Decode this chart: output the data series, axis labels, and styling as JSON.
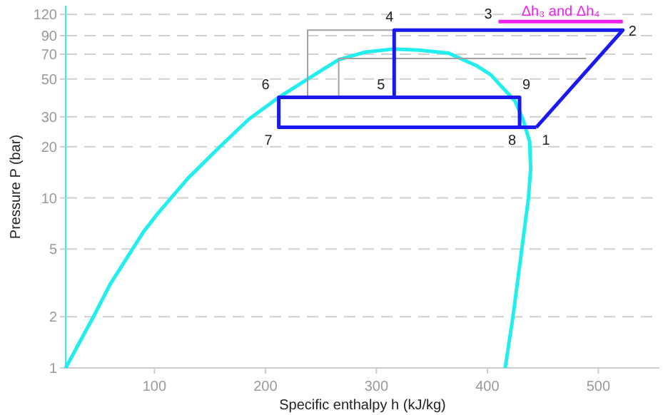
{
  "chart_data": {
    "type": "line",
    "xlabel": "Specific enthalpy h (kJ/kg)",
    "ylabel": "Pressure P (bar)",
    "log": "y",
    "grid": "y",
    "line_style": "solid",
    "xlim": [
      20,
      555
    ],
    "xticks": [
      100,
      200,
      300,
      400,
      500
    ],
    "ylim": [
      1,
      135
    ],
    "yticks": [
      1,
      2,
      5,
      10,
      20,
      30,
      50,
      70,
      90,
      120
    ],
    "series": [
      {
        "color": "#22eeee",
        "x": [
          20,
          45,
          60,
          90,
          103,
          130,
          159,
          185,
          212,
          238,
          266,
          290,
          315,
          338,
          365,
          390,
          403,
          425,
          432,
          438,
          439,
          437,
          431,
          423,
          416
        ],
        "values": [
          1,
          2,
          3.1,
          6.3,
          8.1,
          13,
          20,
          29,
          39,
          50,
          65,
          72,
          75,
          74,
          71,
          60,
          53,
          37,
          29,
          21.5,
          15,
          10,
          5,
          2,
          1
        ]
      },
      {
        "color": "#a0a0a0",
        "x": [
          316,
          238,
          238
        ],
        "values": [
          97,
          97,
          39
        ]
      },
      {
        "color": "#a0a0a0",
        "x": [
          489,
          266,
          266
        ],
        "values": [
          66,
          66,
          39
        ]
      },
      {
        "color": "#1a1aee",
        "x": [
          444,
          522,
          316,
          316
        ],
        "values": [
          26,
          97,
          97,
          39
        ]
      },
      {
        "color": "#1a1aee",
        "x": [
          444,
          212,
          212,
          429,
          429
        ],
        "values": [
          26,
          26,
          39,
          39,
          26
        ]
      },
      {
        "color": "#ee22ee",
        "x": [
          410,
          522
        ],
        "values": [
          109,
          109
        ]
      }
    ],
    "annotations": [
      {
        "text": "1",
        "x": 444,
        "y": 26
      },
      {
        "text": "2",
        "x": 522,
        "y": 97
      },
      {
        "text": "3",
        "x": 410,
        "y": 109
      },
      {
        "text": "4",
        "x": 316,
        "y": 97
      },
      {
        "text": "5",
        "x": 316,
        "y": 39
      },
      {
        "text": "6",
        "x": 212,
        "y": 39
      },
      {
        "text": "7",
        "x": 212,
        "y": 26
      },
      {
        "text": "8",
        "x": 429,
        "y": 26
      },
      {
        "text": "9",
        "x": 429,
        "y": 39
      },
      {
        "text": "Δh₃ and Δh₄",
        "x": 466,
        "y": 109
      }
    ]
  }
}
